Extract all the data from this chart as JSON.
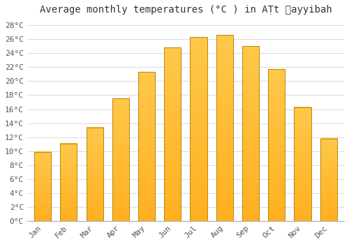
{
  "title": "Average monthly temperatures (°C ) in AṬt ẫayyibah",
  "months": [
    "Jan",
    "Feb",
    "Mar",
    "Apr",
    "May",
    "Jun",
    "Jul",
    "Aug",
    "Sep",
    "Oct",
    "Nov",
    "Dec"
  ],
  "values": [
    9.9,
    11.1,
    13.4,
    17.5,
    21.3,
    24.8,
    26.3,
    26.6,
    25.0,
    21.7,
    16.3,
    11.8
  ],
  "bar_color_top": "#FFA020",
  "bar_color_bottom": "#FFB830",
  "bar_edge_color": "#B8860B",
  "background_color": "#FFFFFF",
  "grid_color": "#DDDDDD",
  "ylim": [
    0,
    29
  ],
  "title_fontsize": 10,
  "tick_fontsize": 8,
  "font_family": "monospace"
}
